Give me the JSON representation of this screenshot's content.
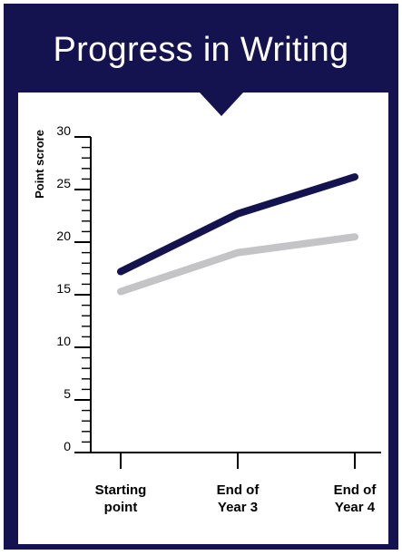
{
  "header": {
    "title": "Progress in Writing"
  },
  "colors": {
    "frame": "#14134f",
    "series_1": "#14134f",
    "series_2": "#c4c4c6"
  },
  "chart_data": {
    "type": "line",
    "title": "Progress in Writing",
    "ylabel": "Point scrore",
    "xlabel": "",
    "categories": [
      [
        "Starting",
        "point"
      ],
      [
        "End of",
        "Year 3"
      ],
      [
        "End of",
        "Year 4"
      ]
    ],
    "ylim": [
      0,
      30
    ],
    "yticks": [
      0,
      5,
      10,
      15,
      20,
      25,
      30
    ],
    "minor_tick_step": 1,
    "grid": false,
    "legend": "none",
    "series": [
      {
        "values": [
          17.2,
          22.7,
          26.2
        ],
        "color": "#14134f"
      },
      {
        "values": [
          15.3,
          19.0,
          20.5
        ],
        "color": "#c4c4c6"
      }
    ]
  }
}
